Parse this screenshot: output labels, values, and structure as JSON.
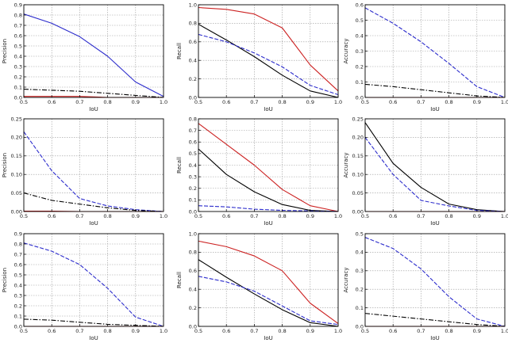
{
  "figure": {
    "type": "grid-of-line-charts",
    "rows": 3,
    "cols": 3
  },
  "chart_data": [
    {
      "type": "line",
      "x": [
        0.5,
        0.6,
        0.7,
        0.8,
        0.9,
        1.0
      ],
      "xlabel": "IoU",
      "ylabel": "Precision",
      "xlim": [
        0.5,
        1.0
      ],
      "ylim": [
        0,
        0.9
      ],
      "yticks": [
        0.0,
        0.1,
        0.2,
        0.3,
        0.4,
        0.5,
        0.6,
        0.7,
        0.8,
        0.9
      ],
      "ytick_labels": [
        "0.0",
        "0.1",
        "0.2",
        "0.3",
        "0.4",
        "0.5",
        "0.6",
        "0.7",
        "0.8",
        "0.9"
      ],
      "grid": true,
      "series": [
        {
          "color": "#2c2ccc",
          "dash": "solid",
          "values": [
            0.81,
            0.72,
            0.59,
            0.4,
            0.15,
            0.01
          ]
        },
        {
          "color": "#000000",
          "dash": "dashdot",
          "values": [
            0.08,
            0.07,
            0.06,
            0.04,
            0.02,
            0.0
          ]
        },
        {
          "color": "#cc2222",
          "dash": "solid",
          "values": [
            0.01,
            0.01,
            0.01,
            0.0,
            0.0,
            0.0
          ]
        }
      ]
    },
    {
      "type": "line",
      "x": [
        0.5,
        0.6,
        0.7,
        0.8,
        0.9,
        1.0
      ],
      "xlabel": "IoU",
      "ylabel": "Recall",
      "xlim": [
        0.5,
        1.0
      ],
      "ylim": [
        0,
        1.0
      ],
      "yticks": [
        0.0,
        0.2,
        0.4,
        0.6,
        0.8,
        1.0
      ],
      "ytick_labels": [
        "0.0",
        "0.2",
        "0.4",
        "0.6",
        "0.8",
        "1.0"
      ],
      "grid": true,
      "series": [
        {
          "color": "#cc2222",
          "dash": "solid",
          "values": [
            0.97,
            0.95,
            0.9,
            0.75,
            0.35,
            0.07
          ]
        },
        {
          "color": "#000000",
          "dash": "solid",
          "values": [
            0.79,
            0.62,
            0.44,
            0.24,
            0.07,
            0.0
          ]
        },
        {
          "color": "#2c2ccc",
          "dash": "dashed",
          "values": [
            0.68,
            0.6,
            0.48,
            0.33,
            0.13,
            0.03
          ]
        }
      ]
    },
    {
      "type": "line",
      "x": [
        0.5,
        0.6,
        0.7,
        0.8,
        0.9,
        1.0
      ],
      "xlabel": "IoU",
      "ylabel": "Accuracy",
      "xlim": [
        0.5,
        1.0
      ],
      "ylim": [
        0,
        0.6
      ],
      "yticks": [
        0.0,
        0.1,
        0.2,
        0.3,
        0.4,
        0.5,
        0.6
      ],
      "ytick_labels": [
        "0.0",
        "0.1",
        "0.2",
        "0.3",
        "0.4",
        "0.5",
        "0.6"
      ],
      "grid": true,
      "series": [
        {
          "color": "#2c2ccc",
          "dash": "dashed",
          "values": [
            0.58,
            0.48,
            0.36,
            0.22,
            0.07,
            0.0
          ]
        },
        {
          "color": "#000000",
          "dash": "dashdot",
          "values": [
            0.085,
            0.07,
            0.05,
            0.03,
            0.01,
            0.0
          ]
        },
        {
          "color": "#cc2222",
          "dash": "solid",
          "values": [
            0.0,
            0.0,
            0.0,
            0.0,
            0.0,
            0.0
          ]
        }
      ]
    },
    {
      "type": "line",
      "x": [
        0.5,
        0.6,
        0.7,
        0.8,
        0.9,
        1.0
      ],
      "xlabel": "IoU",
      "ylabel": "Precision",
      "xlim": [
        0.5,
        1.0
      ],
      "ylim": [
        0,
        0.25
      ],
      "yticks": [
        0.0,
        0.05,
        0.1,
        0.15,
        0.2,
        0.25
      ],
      "ytick_labels": [
        "0.00",
        "0.05",
        "0.10",
        "0.15",
        "0.20",
        "0.25"
      ],
      "grid": true,
      "series": [
        {
          "color": "#2c2ccc",
          "dash": "dashed",
          "values": [
            0.215,
            0.11,
            0.035,
            0.015,
            0.005,
            0.0
          ]
        },
        {
          "color": "#000000",
          "dash": "dashdot",
          "values": [
            0.05,
            0.03,
            0.02,
            0.01,
            0.003,
            0.0
          ]
        },
        {
          "color": "#cc2222",
          "dash": "solid",
          "values": [
            0.001,
            0.001,
            0.0,
            0.0,
            0.0,
            0.0
          ]
        }
      ]
    },
    {
      "type": "line",
      "x": [
        0.5,
        0.6,
        0.7,
        0.8,
        0.9,
        1.0
      ],
      "xlabel": "IoU",
      "ylabel": "Recall",
      "xlim": [
        0.5,
        1.0
      ],
      "ylim": [
        0,
        0.8
      ],
      "yticks": [
        0.0,
        0.1,
        0.2,
        0.3,
        0.4,
        0.5,
        0.6,
        0.7,
        0.8
      ],
      "ytick_labels": [
        "0.0",
        "0.1",
        "0.2",
        "0.3",
        "0.4",
        "0.5",
        "0.6",
        "0.7",
        "0.8"
      ],
      "grid": true,
      "series": [
        {
          "color": "#cc2222",
          "dash": "solid",
          "values": [
            0.76,
            0.58,
            0.4,
            0.19,
            0.05,
            0.0
          ]
        },
        {
          "color": "#000000",
          "dash": "solid",
          "values": [
            0.54,
            0.32,
            0.17,
            0.06,
            0.01,
            0.0
          ]
        },
        {
          "color": "#2c2ccc",
          "dash": "dashed",
          "values": [
            0.05,
            0.04,
            0.02,
            0.01,
            0.005,
            0.0
          ]
        }
      ]
    },
    {
      "type": "line",
      "x": [
        0.5,
        0.6,
        0.7,
        0.8,
        0.9,
        1.0
      ],
      "xlabel": "IoU",
      "ylabel": "Accuracy",
      "xlim": [
        0.5,
        1.0
      ],
      "ylim": [
        0,
        0.25
      ],
      "yticks": [
        0.0,
        0.05,
        0.1,
        0.15,
        0.2,
        0.25
      ],
      "ytick_labels": [
        "0.00",
        "0.05",
        "0.10",
        "0.15",
        "0.20",
        "0.25"
      ],
      "grid": true,
      "series": [
        {
          "color": "#000000",
          "dash": "solid",
          "values": [
            0.24,
            0.13,
            0.065,
            0.02,
            0.005,
            0.0
          ]
        },
        {
          "color": "#2c2ccc",
          "dash": "dashed",
          "values": [
            0.2,
            0.1,
            0.03,
            0.015,
            0.003,
            0.0
          ]
        },
        {
          "color": "#cc2222",
          "dash": "solid",
          "values": [
            0.0,
            0.0,
            0.0,
            0.0,
            0.0,
            0.0
          ]
        }
      ]
    },
    {
      "type": "line",
      "x": [
        0.5,
        0.6,
        0.7,
        0.8,
        0.9,
        1.0
      ],
      "xlabel": "IoU",
      "ylabel": "Precision",
      "xlim": [
        0.5,
        1.0
      ],
      "ylim": [
        0,
        0.9
      ],
      "yticks": [
        0.0,
        0.1,
        0.2,
        0.3,
        0.4,
        0.5,
        0.6,
        0.7,
        0.8,
        0.9
      ],
      "ytick_labels": [
        "0.0",
        "0.1",
        "0.2",
        "0.3",
        "0.4",
        "0.5",
        "0.6",
        "0.7",
        "0.8",
        "0.9"
      ],
      "grid": true,
      "series": [
        {
          "color": "#2c2ccc",
          "dash": "dashed",
          "values": [
            0.81,
            0.73,
            0.6,
            0.37,
            0.09,
            0.0
          ]
        },
        {
          "color": "#000000",
          "dash": "dashdot",
          "values": [
            0.07,
            0.06,
            0.04,
            0.02,
            0.01,
            0.0
          ]
        },
        {
          "color": "#cc2222",
          "dash": "solid",
          "values": [
            0.0,
            0.0,
            0.0,
            0.0,
            0.0,
            0.0
          ]
        }
      ]
    },
    {
      "type": "line",
      "x": [
        0.5,
        0.6,
        0.7,
        0.8,
        0.9,
        1.0
      ],
      "xlabel": "IoU",
      "ylabel": "Recall",
      "xlim": [
        0.5,
        1.0
      ],
      "ylim": [
        0,
        1.0
      ],
      "yticks": [
        0.0,
        0.2,
        0.4,
        0.6,
        0.8,
        1.0
      ],
      "ytick_labels": [
        "0.0",
        "0.2",
        "0.4",
        "0.6",
        "0.8",
        "1.0"
      ],
      "grid": true,
      "series": [
        {
          "color": "#cc2222",
          "dash": "solid",
          "values": [
            0.92,
            0.86,
            0.76,
            0.6,
            0.25,
            0.03
          ]
        },
        {
          "color": "#000000",
          "dash": "solid",
          "values": [
            0.72,
            0.53,
            0.35,
            0.18,
            0.04,
            0.0
          ]
        },
        {
          "color": "#2c2ccc",
          "dash": "dashed",
          "values": [
            0.54,
            0.48,
            0.38,
            0.22,
            0.06,
            0.02
          ]
        }
      ]
    },
    {
      "type": "line",
      "x": [
        0.5,
        0.6,
        0.7,
        0.8,
        0.9,
        1.0
      ],
      "xlabel": "IoU",
      "ylabel": "Accuracy",
      "xlim": [
        0.5,
        1.0
      ],
      "ylim": [
        0,
        0.5
      ],
      "yticks": [
        0.0,
        0.1,
        0.2,
        0.3,
        0.4,
        0.5
      ],
      "ytick_labels": [
        "0.0",
        "0.1",
        "0.2",
        "0.3",
        "0.4",
        "0.5"
      ],
      "grid": true,
      "series": [
        {
          "color": "#2c2ccc",
          "dash": "dashed",
          "values": [
            0.48,
            0.42,
            0.31,
            0.16,
            0.04,
            0.0
          ]
        },
        {
          "color": "#000000",
          "dash": "dashdot",
          "values": [
            0.07,
            0.055,
            0.04,
            0.025,
            0.01,
            0.0
          ]
        },
        {
          "color": "#cc2222",
          "dash": "solid",
          "values": [
            0.0,
            0.0,
            0.0,
            0.0,
            0.0,
            0.0
          ]
        }
      ]
    }
  ]
}
